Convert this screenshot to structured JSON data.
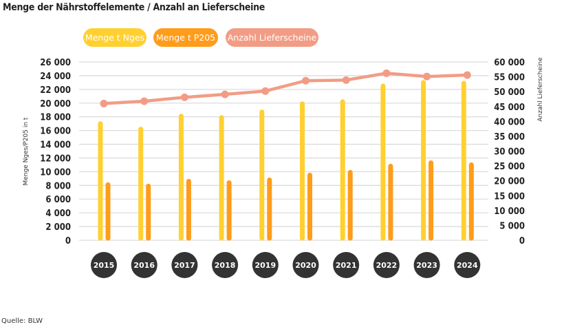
{
  "title": "Menge der Nährstoffelemente / Anzahl an Lieferscheine",
  "source": "Quelle: BLW",
  "chart_data": {
    "type": "bar",
    "categories": [
      "2015",
      "2016",
      "2017",
      "2018",
      "2019",
      "2020",
      "2021",
      "2022",
      "2023",
      "2024"
    ],
    "series": [
      {
        "name": "Menge t Nges",
        "type": "bar",
        "axis": "left",
        "color": "#FFD030",
        "values": [
          17300,
          16500,
          18400,
          18200,
          19000,
          20200,
          20500,
          22800,
          23300,
          23200
        ]
      },
      {
        "name": "Menge t P2O5",
        "type": "bar",
        "axis": "left",
        "color": "#FF9C1A",
        "values": [
          8400,
          8200,
          8900,
          8700,
          9100,
          9800,
          10200,
          11100,
          11600,
          11300
        ]
      },
      {
        "name": "Anzahl Lieferscheine",
        "type": "line",
        "axis": "right",
        "color": "#F29C85",
        "values": [
          46000,
          46800,
          48100,
          49100,
          50200,
          53700,
          53900,
          56200,
          55100,
          55600
        ]
      }
    ],
    "legend_labels": [
      "Menge t Nges",
      "Menge t P205",
      "Anzahl Lieferscheine"
    ],
    "ylabel_left": "Menge Nges/P205 in t",
    "ylabel_right": "Anzahl Lieferscheine",
    "ylim_left": [
      0,
      26000
    ],
    "ylim_right": [
      0,
      60000
    ],
    "yticks_left": [
      "0",
      "2 000",
      "4 000",
      "6 000",
      "8 000",
      "10 000",
      "12 000",
      "14 000",
      "16 000",
      "18 000",
      "20 000",
      "22 000",
      "24 000",
      "26 000"
    ],
    "yticks_right": [
      "0",
      "5 000",
      "10 000",
      "15 000",
      "20 000",
      "25 000",
      "30 000",
      "35 000",
      "40 000",
      "45 000",
      "50 000",
      "55 000",
      "60 000"
    ],
    "grid": true,
    "legend_placement": "top"
  }
}
